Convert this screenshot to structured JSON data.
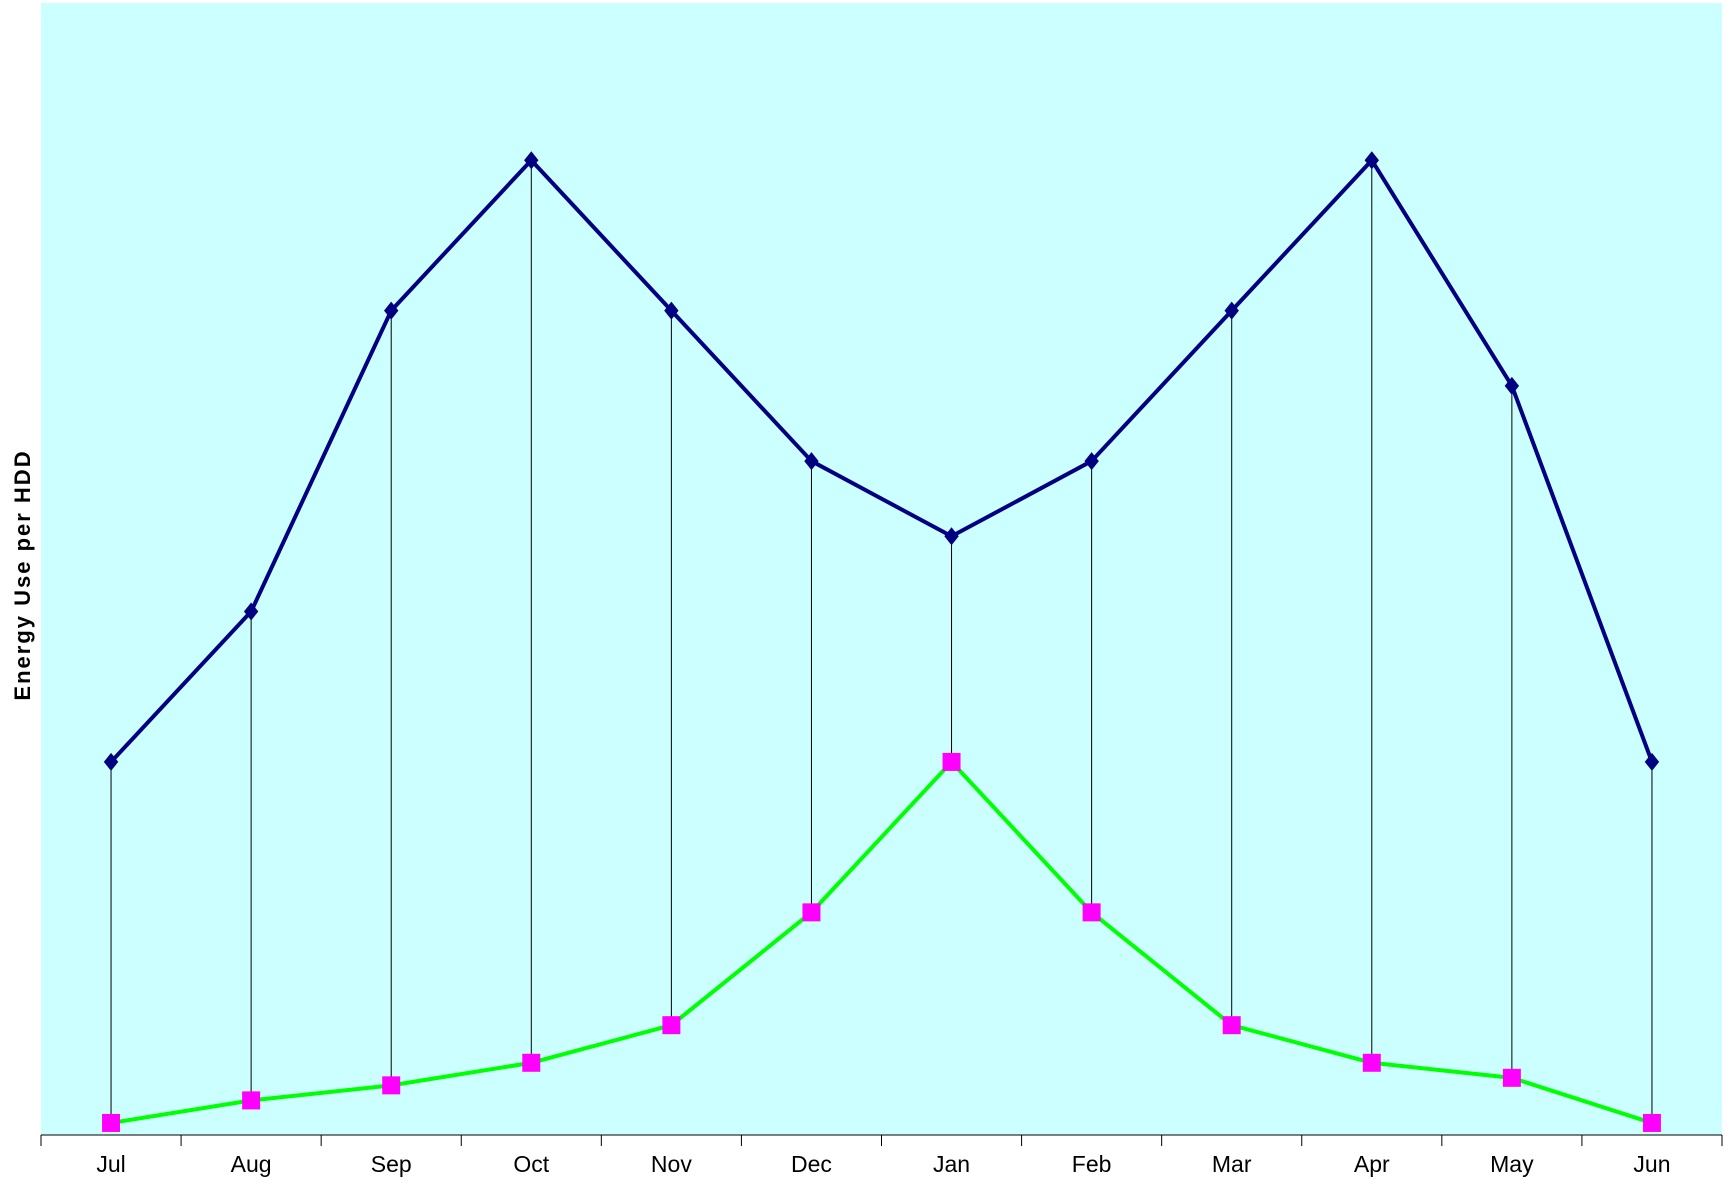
{
  "chart_data": {
    "type": "line",
    "title": "",
    "xlabel": "",
    "ylabel": "Energy Use per HDD",
    "categories": [
      "Jul",
      "Aug",
      "Sep",
      "Oct",
      "Nov",
      "Dec",
      "Jan",
      "Feb",
      "Mar",
      "Apr",
      "May",
      "Jun"
    ],
    "ylim": [
      0,
      14
    ],
    "y_ticks_shown": false,
    "grid": false,
    "legend": "none",
    "drop_lines": true,
    "colors": {
      "plot_background": "#ccffff",
      "series_upper_line": "#000080",
      "series_upper_marker": "#000080",
      "series_lower_line": "#00ff00",
      "series_lower_marker": "#ff00ff",
      "drop_line": "#000000"
    },
    "series": [
      {
        "values": [
          5.0,
          7.0,
          11.0,
          13.0,
          11.0,
          9.0,
          8.0,
          9.0,
          11.0,
          13.0,
          10.0,
          5.0
        ],
        "marker": "diamond"
      },
      {
        "values": [
          0.2,
          0.5,
          0.7,
          1.0,
          1.5,
          3.0,
          5.0,
          3.0,
          1.5,
          1.0,
          0.8,
          0.2
        ],
        "marker": "square"
      }
    ]
  }
}
